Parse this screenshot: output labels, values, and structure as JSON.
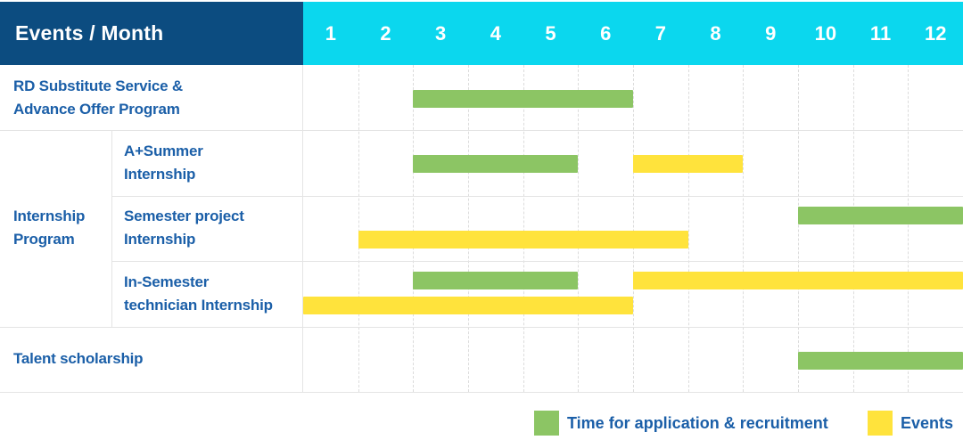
{
  "header": {
    "title": "Events / Month"
  },
  "colors": {
    "header_bg": "#0C4C80",
    "months_bg": "#0BD7EE",
    "header_text": "#FFFFFF",
    "label_text": "#1B5FA8",
    "recruitment_green": "#8CC564",
    "event_yellow": "#FFE33C",
    "grid": "#E4E4E4",
    "grid_dashed": "#DCDCDC"
  },
  "legend": {
    "items": [
      {
        "kind": "recruitment",
        "label": "Time for application & recruitment"
      },
      {
        "kind": "event",
        "label": "Events"
      }
    ],
    "position": "bottom-right"
  },
  "chart_data": {
    "type": "gantt",
    "title": "Events / Month",
    "x_axis_unit": "month",
    "months": [
      "1",
      "2",
      "3",
      "4",
      "5",
      "6",
      "7",
      "8",
      "9",
      "10",
      "11",
      "12"
    ],
    "x_range_months": [
      1,
      12
    ],
    "legend": {
      "recruitment": "Time for application & recruitment",
      "event": "Events"
    },
    "group_label": "Internship Program",
    "group_label_lines": [
      "Internship",
      "Program"
    ],
    "tasks": [
      {
        "id": "rd-substitute-service-advance-offer-program",
        "label": "RD Substitute Service & Advance Offer Program",
        "label_lines": [
          "RD Substitute Service &",
          "Advance Offer Program"
        ],
        "in_group": false,
        "spans": [
          {
            "kind": "recruitment",
            "from_month": 3,
            "to_month": 6,
            "lane": 0
          }
        ]
      },
      {
        "id": "a-plus-summer-internship",
        "label": "A+Summer Internship",
        "label_lines": [
          "A+Summer",
          "Internship"
        ],
        "in_group": true,
        "spans": [
          {
            "kind": "recruitment",
            "from_month": 3,
            "to_month": 5,
            "lane": 0
          },
          {
            "kind": "event",
            "from_month": 7,
            "to_month": 8,
            "lane": 0
          }
        ]
      },
      {
        "id": "semester-project-internship",
        "label": "Semester project Internship",
        "label_lines": [
          "Semester project",
          "Internship"
        ],
        "in_group": true,
        "spans": [
          {
            "kind": "recruitment",
            "from_month": 10,
            "to_month": 12,
            "lane": 0
          },
          {
            "kind": "event",
            "from_month": 2,
            "to_month": 7,
            "lane": 1
          }
        ]
      },
      {
        "id": "in-semester-technician-internship",
        "label": "In-Semester technician Internship",
        "label_lines": [
          "In-Semester",
          "technician Internship"
        ],
        "in_group": true,
        "spans": [
          {
            "kind": "recruitment",
            "from_month": 3,
            "to_month": 5,
            "lane": 0
          },
          {
            "kind": "event",
            "from_month": 7,
            "to_month": 12,
            "lane": 0
          },
          {
            "kind": "event",
            "from_month": 1,
            "to_month": 6,
            "lane": 1
          }
        ]
      },
      {
        "id": "talent-scholarship",
        "label": "Talent scholarship",
        "label_lines": [
          "Talent scholarship"
        ],
        "in_group": false,
        "spans": [
          {
            "kind": "recruitment",
            "from_month": 10,
            "to_month": 12,
            "lane": 0
          }
        ]
      }
    ]
  }
}
